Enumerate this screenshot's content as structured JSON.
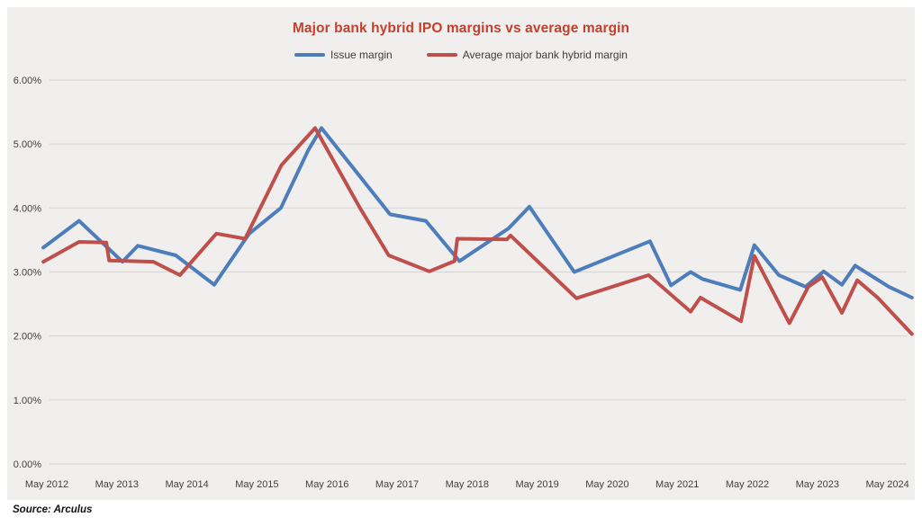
{
  "title": "Major bank hybrid IPO margins vs average margin",
  "source_note": "Source: Arculus",
  "colors": {
    "title_red": "#c2402d",
    "issue_margin_blue": "#4d7dba",
    "average_margin_red": "#bf4f4b",
    "panel_background": "#f0efed",
    "gridline_gray": "#d9d8d5",
    "axis_label_gray": "#3f3f3f"
  },
  "legend": [
    {
      "label": "Issue margin",
      "color_key": "issue_margin_blue"
    },
    {
      "label": "Average major bank hybrid margin",
      "color_key": "average_margin_red"
    }
  ],
  "chart_data": {
    "type": "line",
    "title": "Major bank hybrid IPO margins vs average margin",
    "xlabel": "",
    "ylabel": "",
    "grid": "horizontal",
    "legend_position": "top-center",
    "x_axis": {
      "range": [
        2012.2,
        2024.85
      ],
      "ticks": [
        {
          "year": 2012.37,
          "label": "May 2012"
        },
        {
          "year": 2013.37,
          "label": "May 2013"
        },
        {
          "year": 2014.37,
          "label": "May 2014"
        },
        {
          "year": 2015.37,
          "label": "May 2015"
        },
        {
          "year": 2016.37,
          "label": "May 2016"
        },
        {
          "year": 2017.37,
          "label": "May 2017"
        },
        {
          "year": 2018.37,
          "label": "May 2018"
        },
        {
          "year": 2019.37,
          "label": "May 2019"
        },
        {
          "year": 2020.37,
          "label": "May 2020"
        },
        {
          "year": 2021.37,
          "label": "May 2021"
        },
        {
          "year": 2022.37,
          "label": "May 2022"
        },
        {
          "year": 2023.37,
          "label": "May 2023"
        },
        {
          "year": 2024.37,
          "label": "May 2024"
        }
      ]
    },
    "y_axis": {
      "range": [
        0,
        6
      ],
      "unit": "%",
      "ticks": [
        {
          "value": 0,
          "label": "0.00%"
        },
        {
          "value": 1,
          "label": "1.00%"
        },
        {
          "value": 2,
          "label": "2.00%"
        },
        {
          "value": 3,
          "label": "3.00%"
        },
        {
          "value": 4,
          "label": "4.00%"
        },
        {
          "value": 5,
          "label": "5.00%"
        },
        {
          "value": 6,
          "label": "6.00%"
        }
      ]
    },
    "series": [
      {
        "name": "Issue margin",
        "color_key": "issue_margin_blue",
        "points": [
          [
            2012.32,
            3.38
          ],
          [
            2012.83,
            3.8
          ],
          [
            2013.45,
            3.16
          ],
          [
            2013.67,
            3.41
          ],
          [
            2014.21,
            3.26
          ],
          [
            2014.76,
            2.8
          ],
          [
            2015.26,
            3.6
          ],
          [
            2015.71,
            4.0
          ],
          [
            2016.1,
            4.9
          ],
          [
            2016.29,
            5.25
          ],
          [
            2017.27,
            3.9
          ],
          [
            2017.78,
            3.8
          ],
          [
            2018.26,
            3.17
          ],
          [
            2018.96,
            3.68
          ],
          [
            2019.26,
            4.02
          ],
          [
            2019.9,
            3.0
          ],
          [
            2020.98,
            3.48
          ],
          [
            2021.28,
            2.79
          ],
          [
            2021.56,
            3.0
          ],
          [
            2021.73,
            2.89
          ],
          [
            2022.27,
            2.72
          ],
          [
            2022.47,
            3.42
          ],
          [
            2022.82,
            2.95
          ],
          [
            2023.2,
            2.77
          ],
          [
            2023.46,
            3.01
          ],
          [
            2023.72,
            2.8
          ],
          [
            2023.91,
            3.1
          ],
          [
            2024.39,
            2.77
          ],
          [
            2024.72,
            2.6
          ]
        ]
      },
      {
        "name": "Average major bank hybrid margin",
        "color_key": "average_margin_red",
        "points": [
          [
            2012.32,
            3.16
          ],
          [
            2012.83,
            3.47
          ],
          [
            2013.22,
            3.46
          ],
          [
            2013.26,
            3.18
          ],
          [
            2013.89,
            3.16
          ],
          [
            2014.27,
            2.95
          ],
          [
            2014.79,
            3.6
          ],
          [
            2015.2,
            3.52
          ],
          [
            2015.72,
            4.67
          ],
          [
            2016.2,
            5.25
          ],
          [
            2016.84,
            4.0
          ],
          [
            2017.25,
            3.26
          ],
          [
            2017.83,
            3.01
          ],
          [
            2018.19,
            3.17
          ],
          [
            2018.23,
            3.52
          ],
          [
            2018.94,
            3.51
          ],
          [
            2018.99,
            3.57
          ],
          [
            2019.93,
            2.59
          ],
          [
            2020.96,
            2.95
          ],
          [
            2021.56,
            2.38
          ],
          [
            2021.7,
            2.6
          ],
          [
            2022.28,
            2.23
          ],
          [
            2022.47,
            3.25
          ],
          [
            2022.97,
            2.2
          ],
          [
            2023.24,
            2.77
          ],
          [
            2023.44,
            2.92
          ],
          [
            2023.72,
            2.36
          ],
          [
            2023.94,
            2.87
          ],
          [
            2024.23,
            2.6
          ],
          [
            2024.72,
            2.03
          ]
        ]
      }
    ]
  }
}
